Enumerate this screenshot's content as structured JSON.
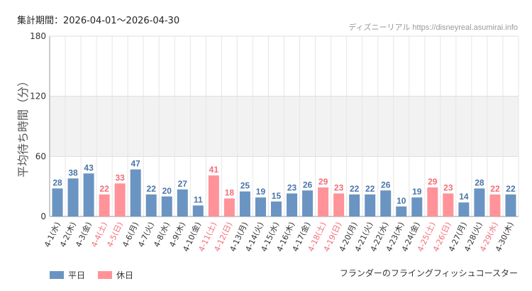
{
  "header": {
    "period": "集計期間：2026-04-01～2026-04-30",
    "credit": "ディズニーリアル https://disneyreal.asumirai.info"
  },
  "footer": {
    "attraction": "フランダーのフライングフィッシュコースター"
  },
  "legend": [
    {
      "label": "平日",
      "color": "#6a94c2"
    },
    {
      "label": "休日",
      "color": "#ff9399"
    }
  ],
  "chart_data": {
    "type": "bar",
    "ylabel": "平均待ち時間（分）",
    "ylim": [
      0,
      180
    ],
    "yticks": [
      0,
      60,
      120,
      180
    ],
    "categories": [
      "4-1(水)",
      "4-2(木)",
      "4-3(金)",
      "4-4(土)",
      "4-5(日)",
      "4-6(月)",
      "4-7(火)",
      "4-8(水)",
      "4-9(木)",
      "4-10(金)",
      "4-11(土)",
      "4-12(日)",
      "4-13(月)",
      "4-14(火)",
      "4-15(水)",
      "4-16(木)",
      "4-17(金)",
      "4-18(土)",
      "4-19(日)",
      "4-20(月)",
      "4-21(火)",
      "4-22(水)",
      "4-23(木)",
      "4-24(金)",
      "4-25(土)",
      "4-26(日)",
      "4-27(月)",
      "4-28(火)",
      "4-29(水)",
      "4-30(木)"
    ],
    "values": [
      28,
      38,
      43,
      22,
      33,
      47,
      22,
      20,
      27,
      11,
      41,
      18,
      25,
      19,
      15,
      23,
      26,
      29,
      23,
      22,
      22,
      26,
      10,
      19,
      29,
      23,
      14,
      28,
      22,
      22
    ],
    "holiday": [
      false,
      false,
      false,
      true,
      true,
      false,
      false,
      false,
      false,
      false,
      true,
      true,
      false,
      false,
      false,
      false,
      false,
      true,
      true,
      false,
      false,
      false,
      false,
      false,
      true,
      true,
      false,
      false,
      true,
      false
    ],
    "colors": {
      "weekday": "#6a94c2",
      "holiday": "#ff9399",
      "weekday_text": "#4a74a8",
      "holiday_text": "#f26d78"
    }
  }
}
